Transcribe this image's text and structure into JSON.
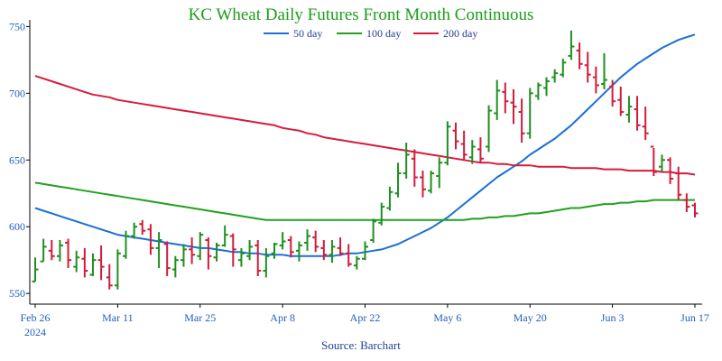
{
  "chart_data": {
    "type": "line",
    "title": "KC Wheat Daily Futures Front Month Continuous",
    "source": "Source: Barchart",
    "ylim": [
      542,
      755
    ],
    "y_ticks": [
      550,
      600,
      650,
      700,
      750
    ],
    "x_tick_labels": [
      {
        "index": 0,
        "label": "Feb 26",
        "sub": "2024"
      },
      {
        "index": 10,
        "label": "Mar 11",
        "sub": ""
      },
      {
        "index": 20,
        "label": "Mar 25",
        "sub": ""
      },
      {
        "index": 30,
        "label": "Apr 8",
        "sub": ""
      },
      {
        "index": 40,
        "label": "Apr 22",
        "sub": ""
      },
      {
        "index": 50,
        "label": "May 6",
        "sub": ""
      },
      {
        "index": 60,
        "label": "May 20",
        "sub": ""
      },
      {
        "index": 70,
        "label": "Jun 3",
        "sub": ""
      },
      {
        "index": 80,
        "label": "Jun 17",
        "sub": ""
      }
    ],
    "x_count": 81,
    "colors": {
      "up": "#1f8f1f",
      "down": "#d01c3c",
      "ma50": "#1a6fd6",
      "ma100": "#22a022",
      "ma200": "#d61c3c"
    },
    "ohlc": [
      [
        559,
        577,
        559,
        568
      ],
      [
        574,
        591,
        574,
        585
      ],
      [
        582,
        590,
        575,
        578
      ],
      [
        578,
        590,
        574,
        586
      ],
      [
        588,
        591,
        569,
        575
      ],
      [
        570,
        582,
        566,
        577
      ],
      [
        576,
        584,
        562,
        567
      ],
      [
        564,
        580,
        563,
        575
      ],
      [
        575,
        586,
        560,
        570
      ],
      [
        562,
        572,
        553,
        556
      ],
      [
        556,
        583,
        553,
        580
      ],
      [
        578,
        597,
        576,
        593
      ],
      [
        593,
        603,
        591,
        600
      ],
      [
        602,
        605,
        594,
        597
      ],
      [
        598,
        602,
        579,
        584
      ],
      [
        584,
        596,
        569,
        590
      ],
      [
        587,
        589,
        563,
        569
      ],
      [
        568,
        578,
        562,
        575
      ],
      [
        575,
        587,
        570,
        583
      ],
      [
        583,
        592,
        572,
        579
      ],
      [
        578,
        596,
        575,
        594
      ],
      [
        590,
        592,
        568,
        578
      ],
      [
        577,
        588,
        574,
        586
      ],
      [
        586,
        601,
        585,
        594
      ],
      [
        593,
        595,
        570,
        583
      ],
      [
        575,
        584,
        570,
        580
      ],
      [
        578,
        590,
        575,
        585
      ],
      [
        586,
        590,
        563,
        567
      ],
      [
        567,
        584,
        562,
        578
      ],
      [
        580,
        588,
        576,
        587
      ],
      [
        586,
        596,
        583,
        589
      ],
      [
        590,
        593,
        577,
        581
      ],
      [
        582,
        589,
        574,
        586
      ],
      [
        588,
        598,
        582,
        593
      ],
      [
        592,
        597,
        581,
        585
      ],
      [
        584,
        590,
        575,
        579
      ],
      [
        579,
        590,
        573,
        585
      ],
      [
        584,
        592,
        578,
        580
      ],
      [
        580,
        587,
        570,
        572
      ],
      [
        571,
        578,
        568,
        576
      ],
      [
        576,
        589,
        575,
        585
      ],
      [
        590,
        606,
        588,
        604
      ],
      [
        603,
        618,
        601,
        615
      ],
      [
        614,
        630,
        612,
        626
      ],
      [
        625,
        648,
        622,
        640
      ],
      [
        640,
        663,
        636,
        654
      ],
      [
        651,
        658,
        630,
        637
      ],
      [
        637,
        642,
        622,
        628
      ],
      [
        627,
        642,
        625,
        640
      ],
      [
        638,
        652,
        629,
        648
      ],
      [
        648,
        679,
        646,
        675
      ],
      [
        672,
        678,
        658,
        664
      ],
      [
        662,
        672,
        650,
        654
      ],
      [
        652,
        665,
        647,
        660
      ],
      [
        658,
        667,
        648,
        651
      ],
      [
        660,
        691,
        656,
        687
      ],
      [
        685,
        710,
        680,
        702
      ],
      [
        701,
        708,
        685,
        694
      ],
      [
        693,
        703,
        677,
        690
      ],
      [
        686,
        696,
        663,
        670
      ],
      [
        670,
        704,
        666,
        700
      ],
      [
        698,
        708,
        695,
        706
      ],
      [
        704,
        712,
        698,
        709
      ],
      [
        712,
        718,
        708,
        715
      ],
      [
        714,
        726,
        712,
        723
      ],
      [
        728,
        747,
        725,
        735
      ],
      [
        732,
        738,
        718,
        722
      ],
      [
        721,
        731,
        708,
        714
      ],
      [
        712,
        720,
        700,
        706
      ],
      [
        707,
        730,
        703,
        710
      ],
      [
        705,
        710,
        690,
        694
      ],
      [
        695,
        705,
        683,
        686
      ],
      [
        684,
        698,
        678,
        690
      ],
      [
        688,
        698,
        672,
        676
      ],
      [
        675,
        690,
        665,
        670
      ],
      [
        660,
        659,
        638,
        641
      ],
      [
        645,
        654,
        641,
        650
      ],
      [
        650,
        652,
        632,
        636
      ],
      [
        640,
        645,
        620,
        624
      ],
      [
        620,
        625,
        611,
        615
      ],
      [
        616,
        618,
        607,
        610
      ]
    ],
    "series": [
      {
        "name": "50 day",
        "values": [
          614,
          612,
          610,
          608,
          606,
          604,
          602,
          600,
          598,
          596,
          594,
          593,
          592,
          591,
          590,
          589,
          588,
          587,
          586,
          585,
          584,
          584,
          583,
          582,
          581,
          581,
          580,
          580,
          579,
          579,
          579,
          578,
          578,
          578,
          578,
          578,
          578,
          579,
          580,
          580,
          581,
          582,
          583,
          585,
          587,
          590,
          593,
          596,
          599,
          603,
          607,
          612,
          617,
          622,
          627,
          632,
          637,
          641,
          645,
          649,
          654,
          658,
          662,
          666,
          671,
          676,
          682,
          688,
          694,
          700,
          706,
          712,
          717,
          722,
          726,
          730,
          734,
          737,
          740,
          742,
          744
        ]
      },
      {
        "name": "100 day",
        "values": [
          633,
          632,
          631,
          630,
          629,
          628,
          627,
          626,
          625,
          624,
          623,
          622,
          621,
          620,
          619,
          618,
          617,
          616,
          615,
          614,
          613,
          612,
          611,
          610,
          609,
          608,
          607,
          606,
          605,
          605,
          605,
          605,
          605,
          605,
          605,
          605,
          605,
          605,
          605,
          605,
          605,
          605,
          605,
          605,
          605,
          605,
          605,
          605,
          605,
          605,
          605,
          605,
          605,
          606,
          606,
          607,
          607,
          608,
          608,
          609,
          610,
          610,
          611,
          612,
          613,
          614,
          614,
          615,
          616,
          617,
          617,
          618,
          618,
          619,
          619,
          620,
          620,
          620,
          620,
          620,
          620
        ]
      },
      {
        "name": "200 day",
        "values": [
          713,
          711,
          709,
          707,
          705,
          703,
          701,
          699,
          698,
          697,
          695,
          694,
          693,
          692,
          691,
          690,
          689,
          688,
          687,
          686,
          685,
          684,
          683,
          682,
          681,
          680,
          679,
          678,
          677,
          676,
          674,
          673,
          672,
          670,
          669,
          667,
          666,
          665,
          664,
          663,
          662,
          661,
          660,
          659,
          658,
          657,
          656,
          655,
          654,
          653,
          652,
          651,
          650,
          649,
          648,
          648,
          647,
          647,
          646,
          646,
          646,
          645,
          645,
          645,
          645,
          644,
          644,
          644,
          644,
          643,
          643,
          643,
          642,
          642,
          642,
          642,
          641,
          641,
          640,
          640,
          639
        ]
      }
    ]
  }
}
